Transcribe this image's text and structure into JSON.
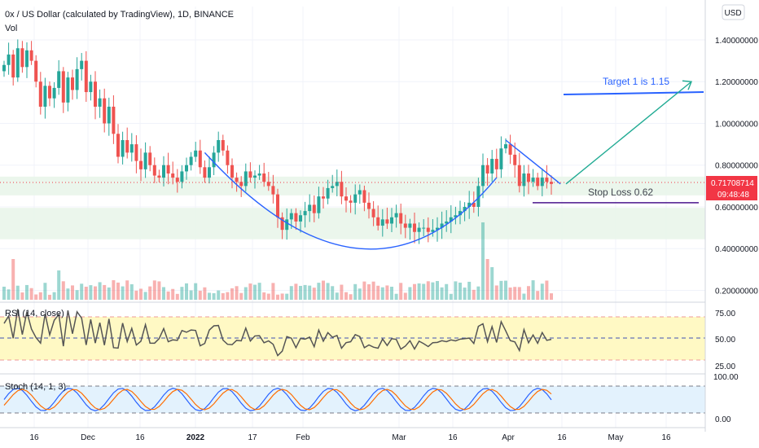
{
  "header": {
    "title": "0x / US Dollar (calculated by TradingView), 1D, BINANCE",
    "vol_label": "Vol",
    "currency_button": "USD"
  },
  "price_tag": {
    "value": "0.71708714",
    "countdown": "09:48:48",
    "color": "#f23645"
  },
  "annotations": {
    "target": "Target 1 is 1.15",
    "stop": "Stop Loss 0.62"
  },
  "colors": {
    "up": "#26a69a",
    "down": "#ef5350",
    "curve": "#2962ff",
    "arrow": "#22ab94",
    "zone": "#e8f5e9",
    "rsi_band": "#fff9c4",
    "stoch_band": "#e3f2fd",
    "rsi_line": "#555555",
    "stoch_k": "#2962ff",
    "stoch_d": "#ff6d00"
  },
  "rsi": {
    "label": "RSI (14, close)",
    "levels": [
      "75.00",
      "50.00",
      "25.00"
    ]
  },
  "stoch": {
    "label": "Stoch (14, 1, 3)",
    "levels": [
      "100.00",
      "0.00"
    ]
  },
  "chart_data": {
    "type": "candlestick",
    "title": "0x / US Dollar (calculated by TradingView), 1D, BINANCE",
    "price_axis_ticks": [
      "1.40000000",
      "1.20000000",
      "1.00000000",
      "0.80000000",
      "0.60000000",
      "0.40000000",
      "0.20000000"
    ],
    "price_axis_values": [
      1.4,
      1.2,
      1.0,
      0.8,
      0.6,
      0.4,
      0.2
    ],
    "ylim": [
      0.155,
      1.56
    ],
    "time_axis_labels": [
      "16",
      "Dec",
      "16",
      "2022",
      "17",
      "Feb",
      "Mar",
      "16",
      "Apr",
      "16",
      "May",
      "16"
    ],
    "last_price": 0.71708714,
    "support_zones": [
      [
        0.655,
        0.745
      ],
      [
        0.445,
        0.595
      ]
    ],
    "target_line": {
      "label": "Target 1 is 1.15",
      "price": 1.15
    },
    "stop_line": {
      "label": "Stop Loss 0.62",
      "price": 0.62
    },
    "projection_arrow": {
      "from_price": 0.71,
      "to_price": 1.2
    },
    "pattern": "cup",
    "close_series": [
      1.28,
      1.33,
      1.22,
      1.36,
      1.27,
      1.35,
      1.3,
      1.2,
      1.08,
      1.18,
      1.12,
      1.17,
      1.25,
      1.1,
      1.22,
      1.16,
      1.26,
      1.3,
      1.15,
      1.2,
      1.08,
      1.12,
      1.0,
      1.08,
      0.95,
      0.84,
      0.92,
      0.86,
      0.9,
      0.82,
      0.78,
      0.86,
      0.8,
      0.75,
      0.74,
      0.8,
      0.76,
      0.74,
      0.72,
      0.77,
      0.8,
      0.84,
      0.87,
      0.79,
      0.74,
      0.79,
      0.86,
      0.92,
      0.87,
      0.8,
      0.74,
      0.72,
      0.7,
      0.77,
      0.74,
      0.75,
      0.76,
      0.72,
      0.7,
      0.66,
      0.55,
      0.49,
      0.54,
      0.57,
      0.53,
      0.56,
      0.58,
      0.61,
      0.57,
      0.65,
      0.64,
      0.69,
      0.7,
      0.72,
      0.65,
      0.63,
      0.62,
      0.66,
      0.68,
      0.62,
      0.59,
      0.55,
      0.51,
      0.54,
      0.52,
      0.55,
      0.57,
      0.52,
      0.5,
      0.52,
      0.48,
      0.5,
      0.5,
      0.48,
      0.49,
      0.5,
      0.52,
      0.53,
      0.55,
      0.56,
      0.58,
      0.6,
      0.62,
      0.6,
      0.7,
      0.8,
      0.76,
      0.83,
      0.78,
      0.88,
      0.9,
      0.85,
      0.8,
      0.7,
      0.76,
      0.72,
      0.74,
      0.7,
      0.74,
      0.72,
      0.71
    ]
  }
}
